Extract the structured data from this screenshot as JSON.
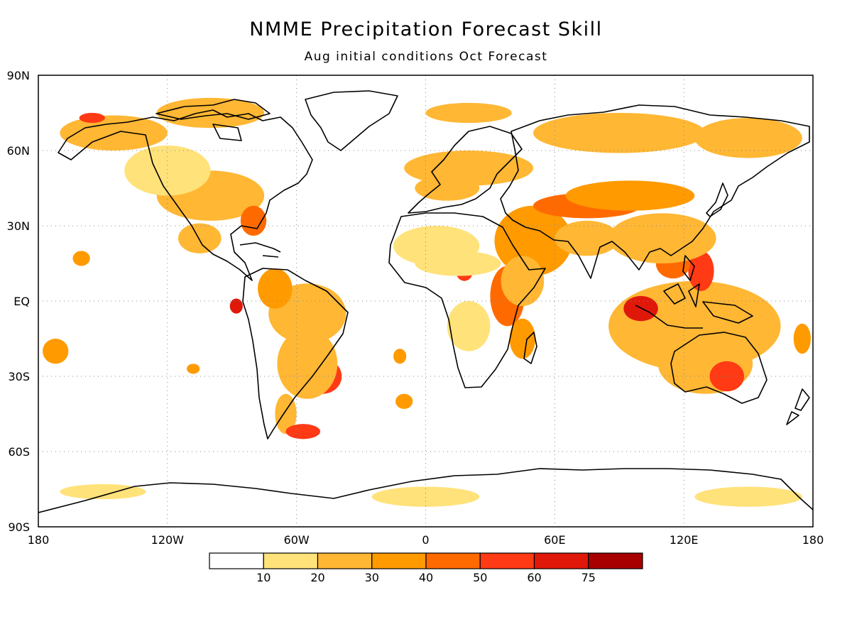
{
  "title": "NMME Precipitation Forecast Skill",
  "subtitle": "Aug initial conditions  Oct Forecast",
  "colors": {
    "background": "#ffffff",
    "coast": "#000000",
    "grid": "#888888",
    "scale": [
      "#ffffff",
      "#ffe27a",
      "#ffb734",
      "#ff9a00",
      "#ff6a00",
      "#ff3a14",
      "#e0180a",
      "#a80000"
    ]
  },
  "map": {
    "lon_range": [
      -180,
      180
    ],
    "lat_range": [
      -90,
      90
    ],
    "grid_lines": "dotted",
    "y_axis_labels": [
      {
        "lat": 90,
        "text": "90N"
      },
      {
        "lat": 60,
        "text": "60N"
      },
      {
        "lat": 30,
        "text": "30N"
      },
      {
        "lat": 0,
        "text": "EQ"
      },
      {
        "lat": -30,
        "text": "30S"
      },
      {
        "lat": -60,
        "text": "60S"
      },
      {
        "lat": -90,
        "text": "90S"
      }
    ],
    "x_axis_labels": [
      {
        "lon": -180,
        "text": "180"
      },
      {
        "lon": -120,
        "text": "120W"
      },
      {
        "lon": -60,
        "text": "60W"
      },
      {
        "lon": 0,
        "text": "0"
      },
      {
        "lon": 60,
        "text": "60E"
      },
      {
        "lon": 120,
        "text": "120E"
      },
      {
        "lon": 180,
        "text": "180"
      }
    ]
  },
  "legend": {
    "labels": [
      "10",
      "20",
      "30",
      "40",
      "50",
      "60",
      "75"
    ]
  },
  "skill_regions": [
    {
      "lon": 45,
      "lat": 27,
      "rlon": 10,
      "rlat": 7,
      "level": 6
    },
    {
      "lon": 50,
      "lat": 24,
      "rlon": 18,
      "rlat": 14,
      "level": 3
    },
    {
      "lon": 132,
      "lat": -7,
      "rlon": 14,
      "rlat": 6,
      "level": 7
    },
    {
      "lon": 127,
      "lat": -7,
      "rlon": 28,
      "rlat": 11,
      "level": 5
    },
    {
      "lon": 125,
      "lat": -10,
      "rlon": 40,
      "rlat": 18,
      "level": 2
    },
    {
      "lon": 128,
      "lat": 12,
      "rlon": 6,
      "rlat": 8,
      "level": 5
    },
    {
      "lon": 115,
      "lat": 15,
      "rlon": 8,
      "rlat": 6,
      "level": 4
    },
    {
      "lon": 100,
      "lat": -3,
      "rlon": 8,
      "rlat": 5,
      "level": 6
    },
    {
      "lon": 130,
      "lat": -25,
      "rlon": 22,
      "rlat": 12,
      "level": 2
    },
    {
      "lon": 140,
      "lat": -30,
      "rlon": 8,
      "rlat": 6,
      "level": 5
    },
    {
      "lon": 75,
      "lat": 38,
      "rlon": 25,
      "rlat": 5,
      "level": 4
    },
    {
      "lon": 95,
      "lat": 42,
      "rlon": 30,
      "rlat": 6,
      "level": 3
    },
    {
      "lon": 110,
      "lat": 25,
      "rlon": 25,
      "rlat": 10,
      "level": 2
    },
    {
      "lon": 75,
      "lat": 25,
      "rlon": 15,
      "rlat": 7,
      "level": 2
    },
    {
      "lon": 38,
      "lat": 2,
      "rlon": 8,
      "rlat": 12,
      "level": 4
    },
    {
      "lon": 45,
      "lat": 8,
      "rlon": 10,
      "rlat": 10,
      "level": 2
    },
    {
      "lon": 45,
      "lat": -15,
      "rlon": 6,
      "rlat": 8,
      "level": 3
    },
    {
      "lon": 18,
      "lat": 12,
      "rlon": 4,
      "rlat": 4,
      "level": 5
    },
    {
      "lon": 20,
      "lat": -10,
      "rlon": 10,
      "rlat": 10,
      "level": 1
    },
    {
      "lon": 15,
      "lat": 15,
      "rlon": 20,
      "rlat": 5,
      "level": 1
    },
    {
      "lon": 5,
      "lat": 22,
      "rlon": 20,
      "rlat": 8,
      "level": 1
    },
    {
      "lon": 20,
      "lat": 53,
      "rlon": 30,
      "rlat": 7,
      "level": 2
    },
    {
      "lon": 10,
      "lat": 45,
      "rlon": 15,
      "rlat": 5,
      "level": 2
    },
    {
      "lon": 90,
      "lat": 67,
      "rlon": 40,
      "rlat": 8,
      "level": 2
    },
    {
      "lon": 150,
      "lat": 65,
      "rlon": 25,
      "rlat": 8,
      "level": 2
    },
    {
      "lon": 20,
      "lat": 75,
      "rlon": 20,
      "rlat": 4,
      "level": 2
    },
    {
      "lon": -48,
      "lat": -30,
      "rlon": 9,
      "rlat": 7,
      "level": 5
    },
    {
      "lon": -55,
      "lat": -25,
      "rlon": 14,
      "rlat": 14,
      "level": 2
    },
    {
      "lon": -55,
      "lat": -5,
      "rlon": 18,
      "rlat": 12,
      "level": 2
    },
    {
      "lon": -70,
      "lat": 5,
      "rlon": 8,
      "rlat": 8,
      "level": 3
    },
    {
      "lon": -88,
      "lat": -2,
      "rlon": 3,
      "rlat": 3,
      "level": 6
    },
    {
      "lon": -65,
      "lat": -45,
      "rlon": 5,
      "rlat": 8,
      "level": 2
    },
    {
      "lon": -57,
      "lat": -52,
      "rlon": 8,
      "rlat": 3,
      "level": 5
    },
    {
      "lon": -100,
      "lat": 42,
      "rlon": 25,
      "rlat": 10,
      "level": 2
    },
    {
      "lon": -80,
      "lat": 32,
      "rlon": 6,
      "rlat": 6,
      "level": 4
    },
    {
      "lon": -105,
      "lat": 25,
      "rlon": 10,
      "rlat": 6,
      "level": 2
    },
    {
      "lon": -120,
      "lat": 52,
      "rlon": 20,
      "rlat": 10,
      "level": 1
    },
    {
      "lon": -100,
      "lat": 75,
      "rlon": 25,
      "rlat": 6,
      "level": 2
    },
    {
      "lon": -145,
      "lat": 67,
      "rlon": 25,
      "rlat": 7,
      "level": 2
    },
    {
      "lon": -155,
      "lat": 73,
      "rlon": 6,
      "rlat": 2,
      "level": 5
    },
    {
      "lon": -160,
      "lat": 17,
      "rlon": 4,
      "rlat": 3,
      "level": 3
    },
    {
      "lon": -172,
      "lat": -20,
      "rlon": 6,
      "rlat": 5,
      "level": 3
    },
    {
      "lon": -108,
      "lat": -27,
      "rlon": 3,
      "rlat": 2,
      "level": 3
    },
    {
      "lon": -12,
      "lat": -22,
      "rlon": 3,
      "rlat": 3,
      "level": 3
    },
    {
      "lon": -10,
      "lat": -40,
      "rlon": 4,
      "rlat": 3,
      "level": 3
    },
    {
      "lon": 0,
      "lat": -78,
      "rlon": 25,
      "rlat": 4,
      "level": 1
    },
    {
      "lon": 150,
      "lat": -78,
      "rlon": 25,
      "rlat": 4,
      "level": 1
    },
    {
      "lon": -150,
      "lat": -76,
      "rlon": 20,
      "rlat": 3,
      "level": 1
    },
    {
      "lon": 175,
      "lat": -15,
      "rlon": 4,
      "rlat": 6,
      "level": 3
    }
  ]
}
